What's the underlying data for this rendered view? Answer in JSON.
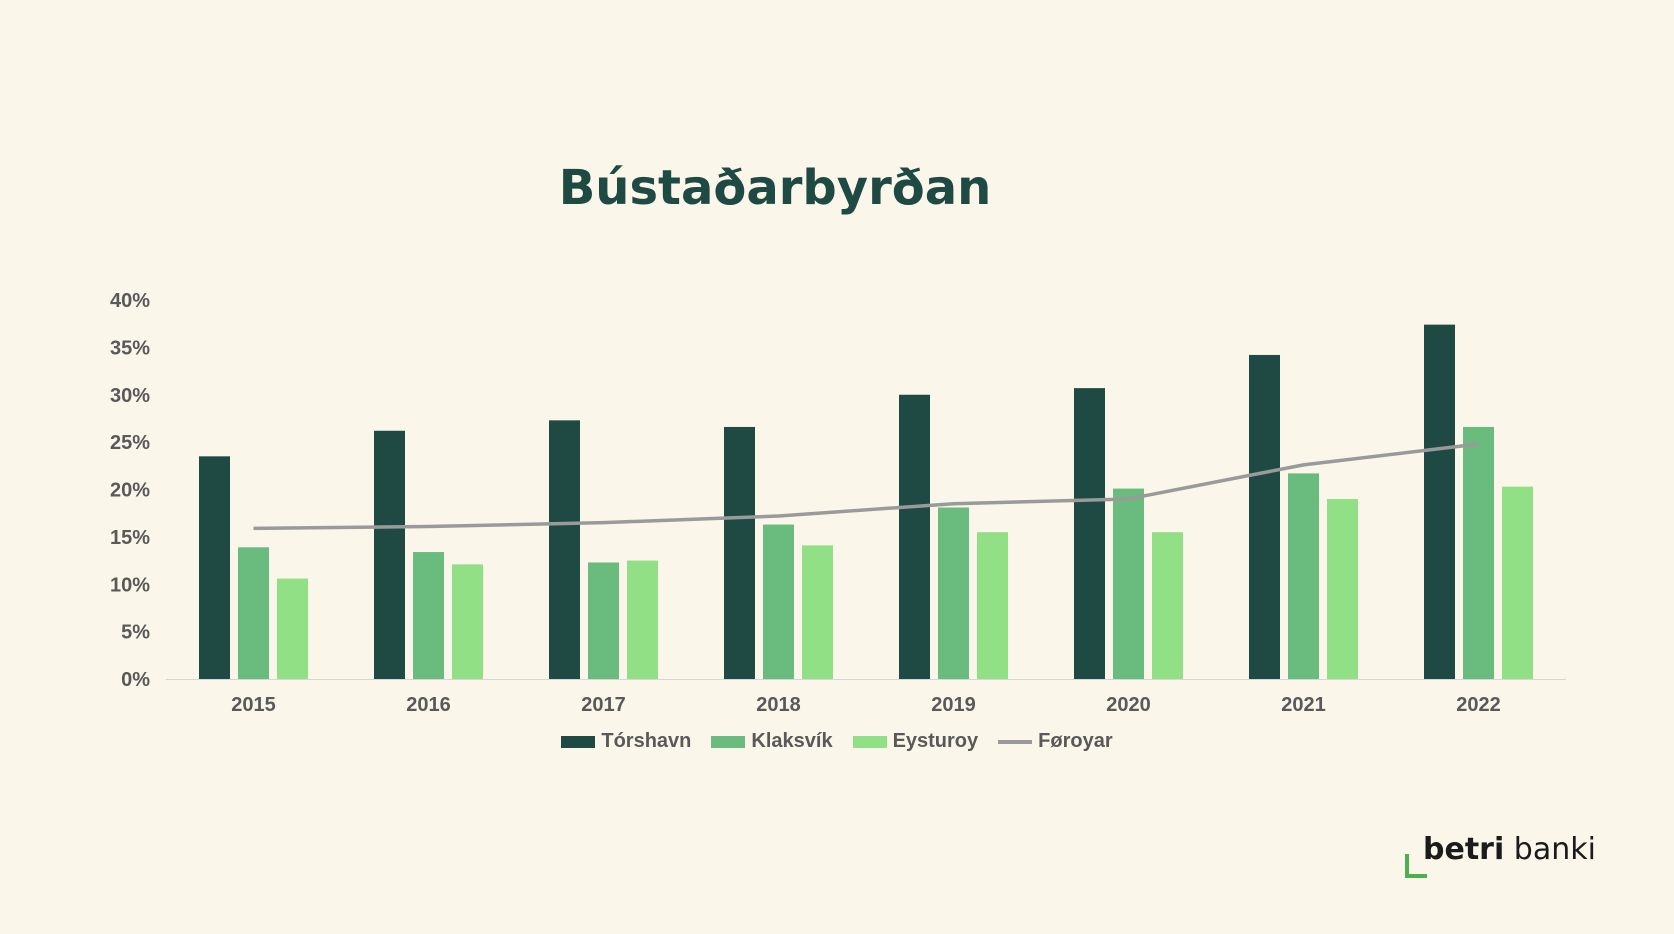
{
  "chart_data": {
    "type": "bar",
    "title": "Bústaðarbyrðan",
    "categories": [
      "2015",
      "2016",
      "2017",
      "2018",
      "2019",
      "2020",
      "2021",
      "2022"
    ],
    "series": [
      {
        "name": "Tórshavn",
        "type": "bar",
        "color": "#1f4a44",
        "values": [
          23.5,
          26.2,
          27.3,
          26.6,
          30.0,
          30.7,
          34.2,
          37.4
        ]
      },
      {
        "name": "Klaksvík",
        "type": "bar",
        "color": "#69bb7e",
        "values": [
          13.9,
          13.4,
          12.3,
          16.3,
          18.1,
          20.1,
          21.7,
          26.6
        ]
      },
      {
        "name": "Eysturoy",
        "type": "bar",
        "color": "#92e085",
        "values": [
          10.6,
          12.1,
          12.5,
          14.1,
          15.5,
          15.5,
          19.0,
          20.3
        ]
      },
      {
        "name": "Føroyar",
        "type": "line",
        "color": "#9a9a9a",
        "values": [
          15.9,
          16.1,
          16.5,
          17.2,
          18.5,
          19.0,
          22.6,
          24.8
        ]
      }
    ],
    "ylim": [
      0,
      40
    ],
    "yticks": [
      "0%",
      "5%",
      "10%",
      "15%",
      "20%",
      "25%",
      "30%",
      "35%",
      "40%"
    ],
    "ytick_values": [
      0,
      5,
      10,
      15,
      20,
      25,
      30,
      35,
      40
    ],
    "grid": false,
    "legend_position": "bottom"
  },
  "legend": {
    "items": [
      {
        "label": "Tórshavn",
        "kind": "bar",
        "color": "#1f4a44"
      },
      {
        "label": "Klaksvík",
        "kind": "bar",
        "color": "#69bb7e"
      },
      {
        "label": "Eysturoy",
        "kind": "bar",
        "color": "#92e085"
      },
      {
        "label": "Føroyar",
        "kind": "line",
        "color": "#9a9a9a"
      }
    ]
  },
  "logo": {
    "bold": "betri",
    "regular": " banki"
  }
}
